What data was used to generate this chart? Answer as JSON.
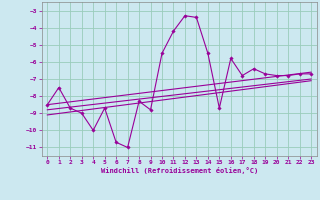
{
  "xlabel": "Windchill (Refroidissement éolien,°C)",
  "bg_color": "#cce8f0",
  "grid_color": "#99ccbb",
  "line_color": "#990099",
  "spine_color": "#888888",
  "xlim": [
    -0.5,
    23.5
  ],
  "ylim": [
    -11.5,
    -2.5
  ],
  "yticks": [
    -11,
    -10,
    -9,
    -8,
    -7,
    -6,
    -5,
    -4,
    -3
  ],
  "xticks": [
    0,
    1,
    2,
    3,
    4,
    5,
    6,
    7,
    8,
    9,
    10,
    11,
    12,
    13,
    14,
    15,
    16,
    17,
    18,
    19,
    20,
    21,
    22,
    23
  ],
  "main_x": [
    0,
    1,
    2,
    3,
    4,
    5,
    6,
    7,
    8,
    9,
    10,
    11,
    12,
    13,
    14,
    15,
    16,
    17,
    18,
    19,
    20,
    21,
    22,
    23
  ],
  "main_y": [
    -8.5,
    -7.5,
    -8.7,
    -9.0,
    -10.0,
    -8.7,
    -10.7,
    -11.0,
    -8.3,
    -8.8,
    -5.5,
    -4.2,
    -3.3,
    -3.4,
    -5.5,
    -8.7,
    -5.8,
    -6.8,
    -6.4,
    -6.7,
    -6.8,
    -6.8,
    -6.7,
    -6.7
  ],
  "trend1_x": [
    0,
    23
  ],
  "trend1_y": [
    -8.5,
    -6.6
  ],
  "trend2_x": [
    0,
    23
  ],
  "trend2_y": [
    -8.8,
    -7.0
  ],
  "trend3_x": [
    0,
    23
  ],
  "trend3_y": [
    -9.1,
    -7.1
  ]
}
